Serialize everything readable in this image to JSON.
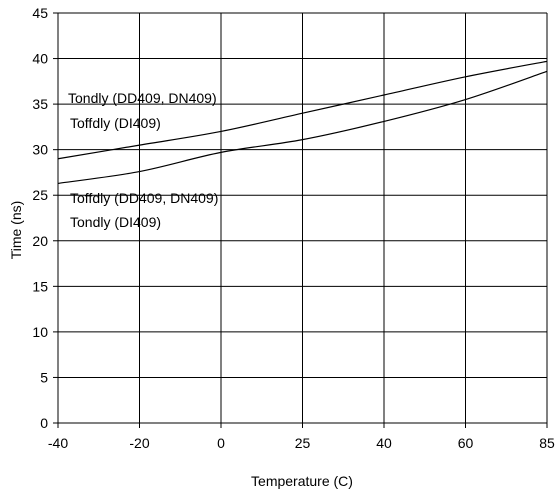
{
  "chart_data": {
    "type": "line",
    "x": [
      "-40",
      "-20",
      "0",
      "25",
      "40",
      "60",
      "85"
    ],
    "series": [
      {
        "values": [
          29.0,
          30.5,
          32.0,
          34.0,
          36.0,
          38.0,
          39.7
        ]
      },
      {
        "values": [
          26.3,
          27.6,
          29.7,
          31.1,
          33.1,
          35.5,
          38.6
        ]
      }
    ],
    "xlabel": "Temperature (C)",
    "ylabel": "Time (ns)",
    "yticks": [
      "0",
      "5",
      "10",
      "15",
      "20",
      "25",
      "30",
      "35",
      "40",
      "45"
    ],
    "ylim": [
      0,
      45
    ],
    "grid": true,
    "legend": "none",
    "annotations": [
      "Tondly (DD409, DN409)",
      "Toffdly (DI409)",
      "Toffdly (DD409, DN409)",
      "Tondly (DI409)"
    ]
  }
}
